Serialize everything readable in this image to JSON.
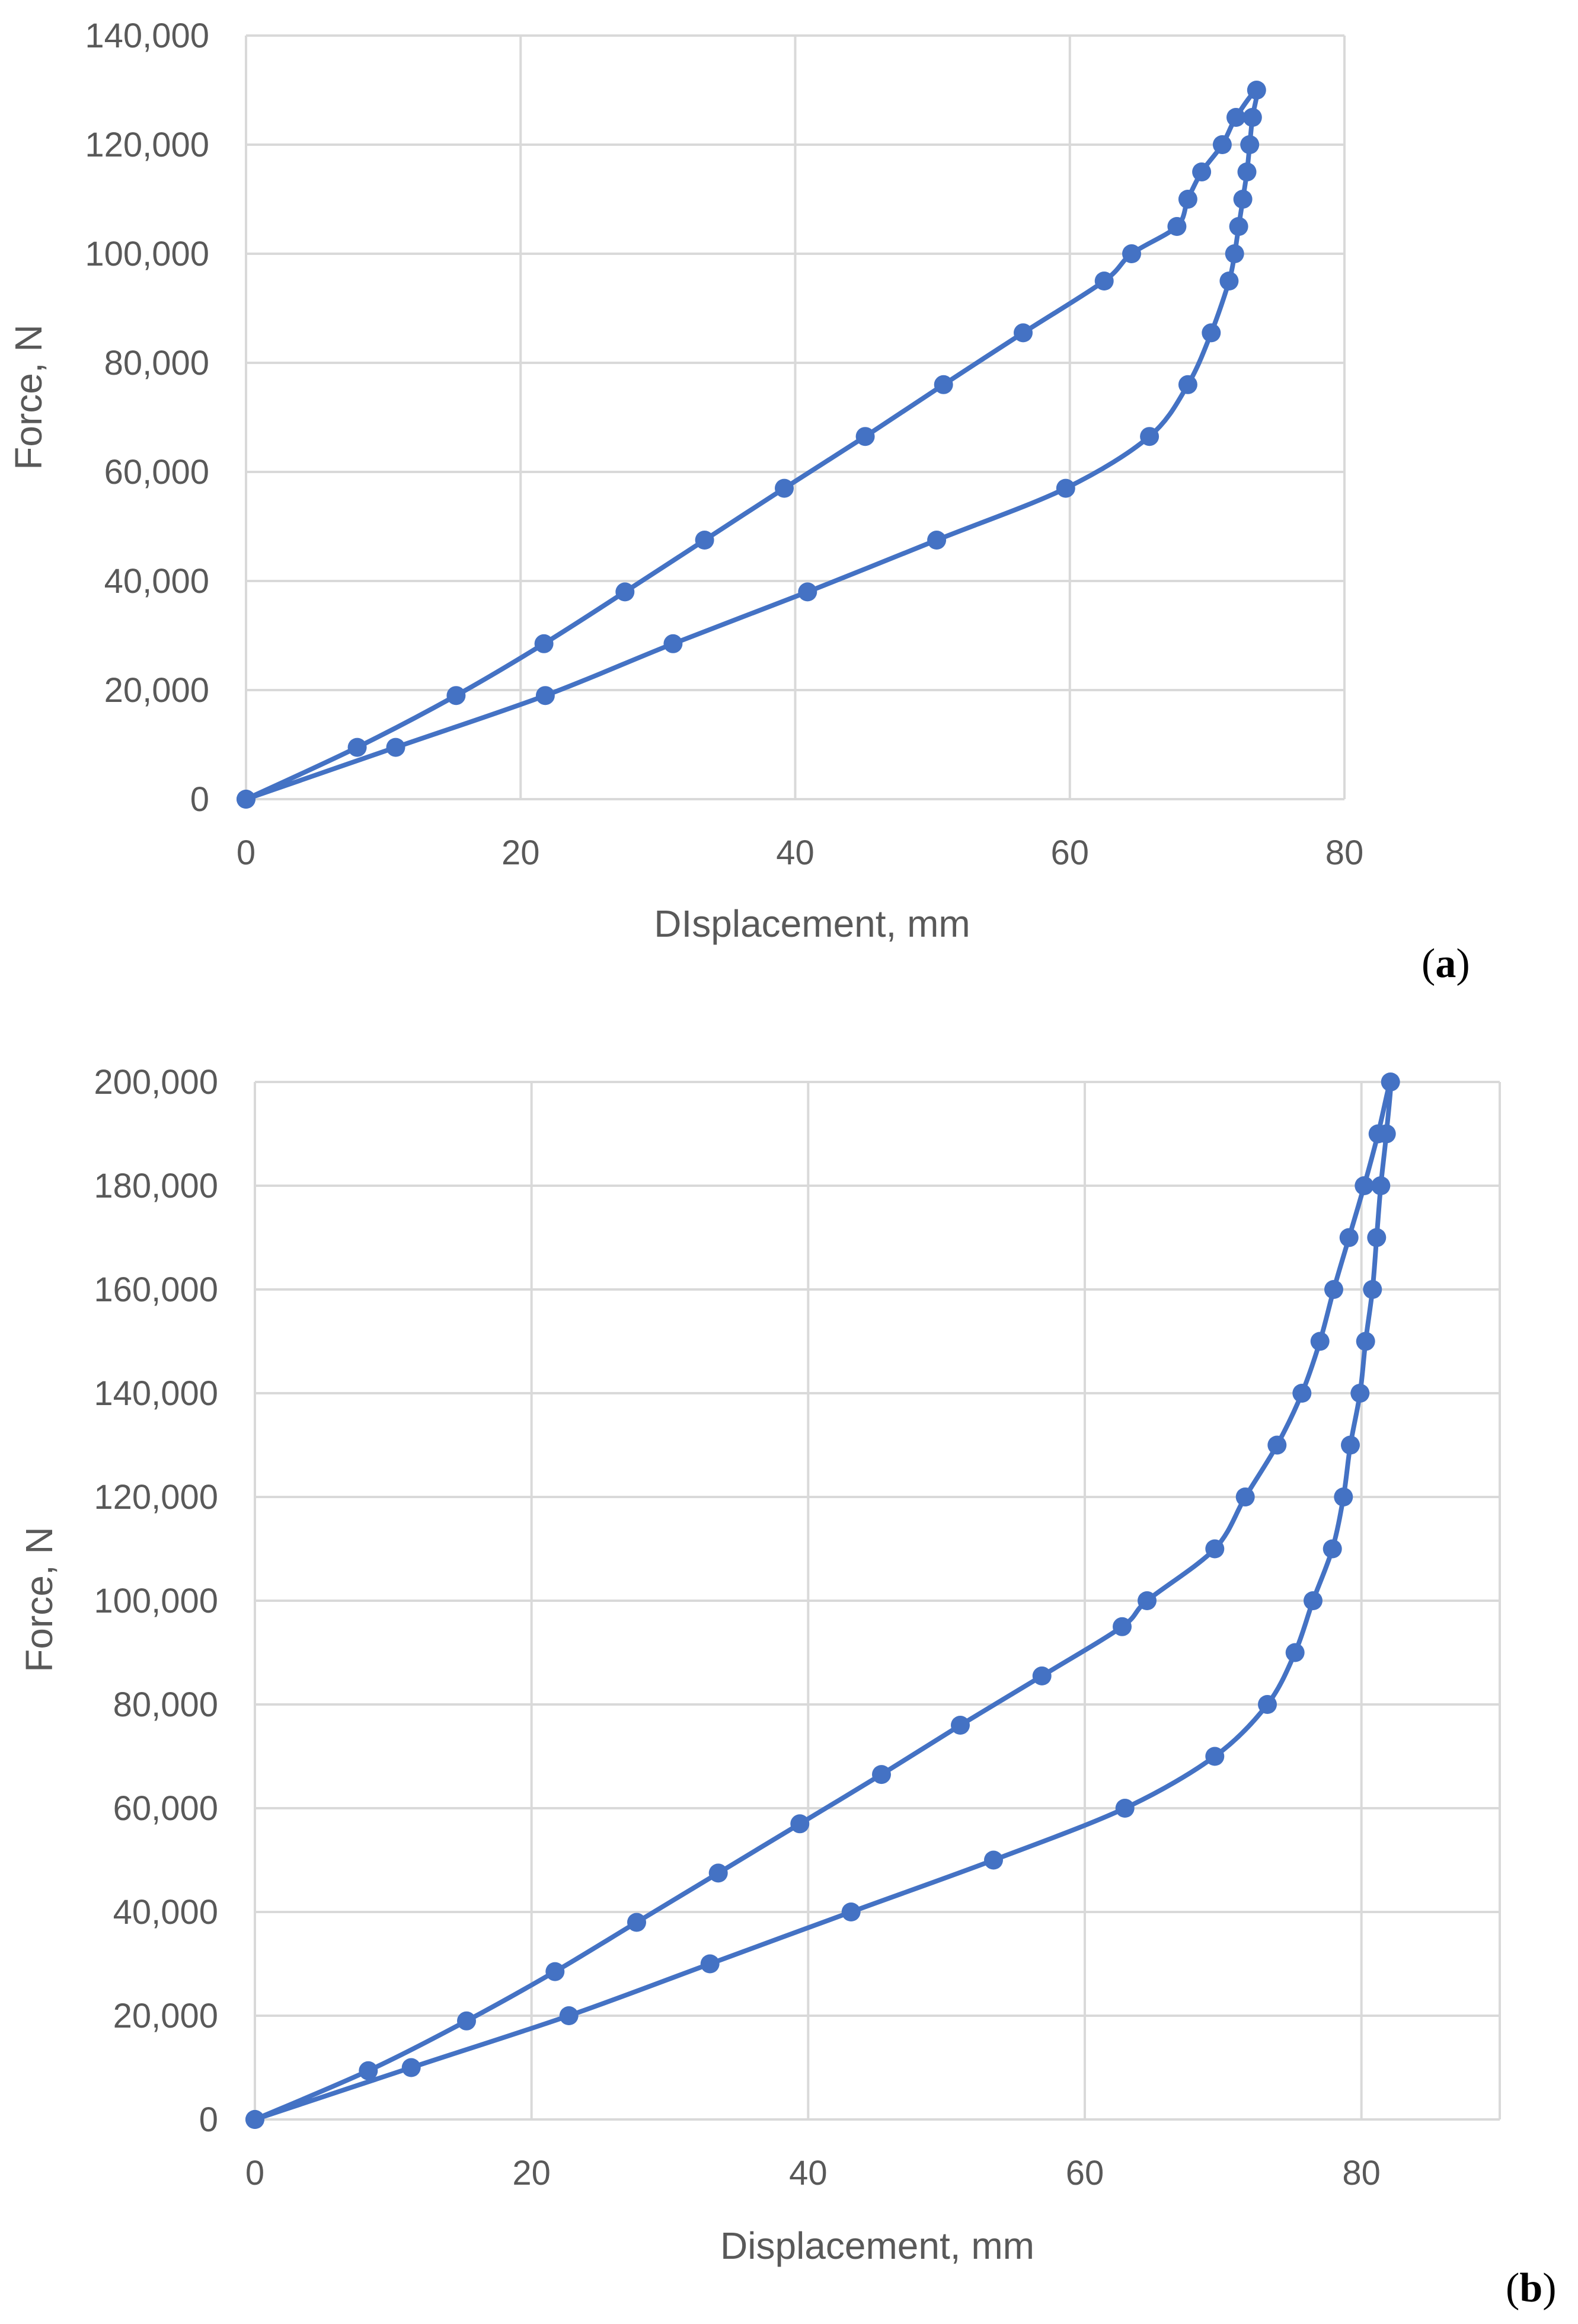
{
  "colors": {
    "series": "#4472c4",
    "grid": "#d9d9d9",
    "text": "#595959"
  },
  "chart_data": [
    {
      "type": "line",
      "panel_label": "a",
      "title": "",
      "xlabel": "DIsplacement, mm",
      "ylabel": "Force, N",
      "xlim": [
        0,
        80
      ],
      "ylim": [
        0,
        140000
      ],
      "x_ticks": [
        0,
        20,
        40,
        60,
        80
      ],
      "y_ticks": [
        0,
        20000,
        40000,
        60000,
        80000,
        100000,
        120000,
        140000
      ],
      "x_tick_labels": [
        "0",
        "20",
        "40",
        "60",
        "80"
      ],
      "y_tick_labels": [
        "0",
        "20,000",
        "40,000",
        "60,000",
        "80,000",
        "100,000",
        "120,000",
        "140,000"
      ],
      "grid": true,
      "legend": "none",
      "series": [
        {
          "points": [
            [
              0,
              0
            ],
            [
              8.1,
              9500
            ],
            [
              15.3,
              19000
            ],
            [
              21.7,
              28500
            ],
            [
              27.6,
              38000
            ],
            [
              33.4,
              47500
            ],
            [
              39.2,
              57000
            ],
            [
              45.1,
              66500
            ],
            [
              50.8,
              76000
            ],
            [
              56.6,
              85500
            ],
            [
              62.5,
              95000
            ],
            [
              64.5,
              100000
            ],
            [
              67.8,
              105000
            ],
            [
              68.6,
              110000
            ],
            [
              69.6,
              115000
            ],
            [
              71.1,
              120000
            ],
            [
              72.1,
              125000
            ],
            [
              73.6,
              130000
            ],
            [
              73.3,
              125000
            ],
            [
              73.1,
              120000
            ],
            [
              72.9,
              115000
            ],
            [
              72.6,
              110000
            ],
            [
              72.3,
              105000
            ],
            [
              72.0,
              100000
            ],
            [
              71.6,
              95000
            ],
            [
              70.3,
              85500
            ],
            [
              68.6,
              76000
            ],
            [
              65.8,
              66500
            ],
            [
              59.7,
              57000
            ],
            [
              50.3,
              47500
            ],
            [
              40.9,
              38000
            ],
            [
              31.1,
              28500
            ],
            [
              21.8,
              19000
            ],
            [
              10.9,
              9500
            ],
            [
              0,
              0
            ]
          ]
        }
      ]
    },
    {
      "type": "line",
      "panel_label": "b",
      "title": "",
      "xlabel": "Displacement, mm",
      "ylabel": "Force, N",
      "xlim": [
        0,
        90
      ],
      "ylim": [
        0,
        200000
      ],
      "x_ticks": [
        0,
        20,
        40,
        60,
        80
      ],
      "y_ticks": [
        0,
        20000,
        40000,
        60000,
        80000,
        100000,
        120000,
        140000,
        160000,
        180000,
        200000
      ],
      "x_tick_labels": [
        "0",
        "20",
        "40",
        "60",
        "80"
      ],
      "y_tick_labels": [
        "0",
        "20,000",
        "40,000",
        "60,000",
        "80,000",
        "100,000",
        "120,000",
        "140,000",
        "160,000",
        "180,000",
        "200,000"
      ],
      "grid": true,
      "legend": "none",
      "series": [
        {
          "points": [
            [
              0,
              0
            ],
            [
              8.2,
              9400
            ],
            [
              15.3,
              19000
            ],
            [
              21.7,
              28500
            ],
            [
              27.6,
              38000
            ],
            [
              33.5,
              47500
            ],
            [
              39.4,
              57000
            ],
            [
              45.3,
              66500
            ],
            [
              51.0,
              76000
            ],
            [
              56.9,
              85500
            ],
            [
              62.7,
              95000
            ],
            [
              64.5,
              100000
            ],
            [
              69.4,
              110000
            ],
            [
              71.6,
              120000
            ],
            [
              73.9,
              130000
            ],
            [
              75.7,
              140000
            ],
            [
              77.0,
              150000
            ],
            [
              78.0,
              160000
            ],
            [
              79.1,
              170000
            ],
            [
              80.2,
              180000
            ],
            [
              81.2,
              190000
            ],
            [
              82.1,
              200000
            ],
            [
              81.8,
              190000
            ],
            [
              81.4,
              180000
            ],
            [
              81.1,
              170000
            ],
            [
              80.8,
              160000
            ],
            [
              80.3,
              150000
            ],
            [
              79.9,
              140000
            ],
            [
              79.2,
              130000
            ],
            [
              78.7,
              120000
            ],
            [
              77.9,
              110000
            ],
            [
              76.5,
              100000
            ],
            [
              75.2,
              90000
            ],
            [
              73.2,
              80000
            ],
            [
              69.4,
              70000
            ],
            [
              62.9,
              60000
            ],
            [
              53.4,
              50000
            ],
            [
              43.1,
              40000
            ],
            [
              32.9,
              30000
            ],
            [
              22.7,
              20000
            ],
            [
              11.3,
              10000
            ],
            [
              0,
              0
            ]
          ]
        }
      ]
    }
  ]
}
